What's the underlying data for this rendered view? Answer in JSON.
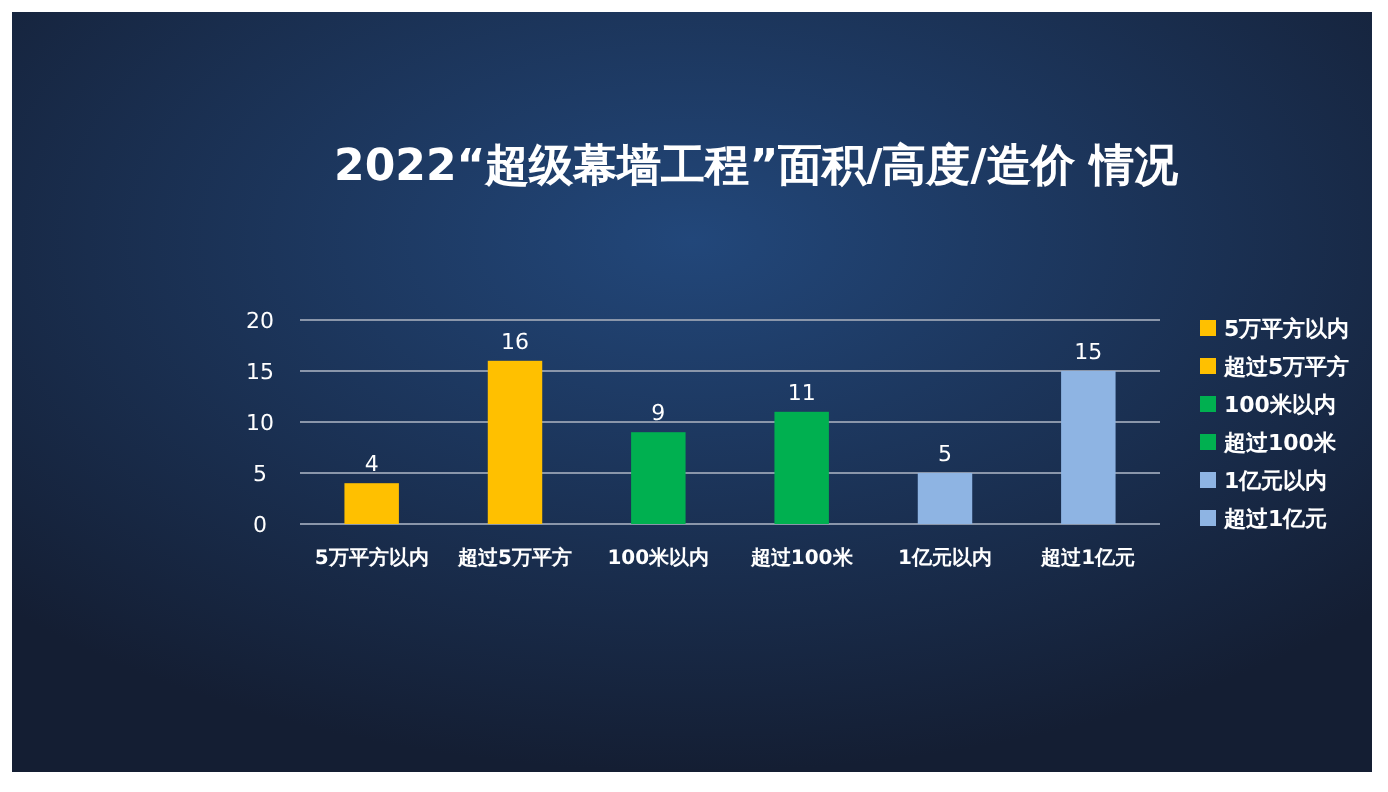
{
  "chart_data": {
    "type": "bar",
    "title": "2022“超级幕墙工程”面积/高度/造价 情况",
    "categories": [
      "5万平方以内",
      "超过5万平方",
      "100米以内",
      "超过100米",
      "1亿元以内",
      "超过1亿元"
    ],
    "series": [
      {
        "name": "5万平方以内",
        "color": "#ffc000",
        "values": [
          4,
          null,
          null,
          null,
          null,
          null
        ]
      },
      {
        "name": "超过5万平方",
        "color": "#ffc000",
        "values": [
          null,
          16,
          null,
          null,
          null,
          null
        ]
      },
      {
        "name": "100米以内",
        "color": "#00b050",
        "values": [
          null,
          null,
          9,
          null,
          null,
          null
        ]
      },
      {
        "name": "超过100米",
        "color": "#00b050",
        "values": [
          null,
          null,
          null,
          11,
          null,
          null
        ]
      },
      {
        "name": "1亿元以内",
        "color": "#8eb4e3",
        "values": [
          null,
          null,
          null,
          null,
          5,
          null
        ]
      },
      {
        "name": "超过1亿元",
        "color": "#8eb4e3",
        "values": [
          null,
          null,
          null,
          null,
          null,
          15
        ]
      }
    ],
    "ylim": [
      0,
      20
    ],
    "yticks": [
      0,
      5,
      10,
      15,
      20
    ],
    "grid": "y",
    "legend": "right",
    "data_labels": true
  }
}
